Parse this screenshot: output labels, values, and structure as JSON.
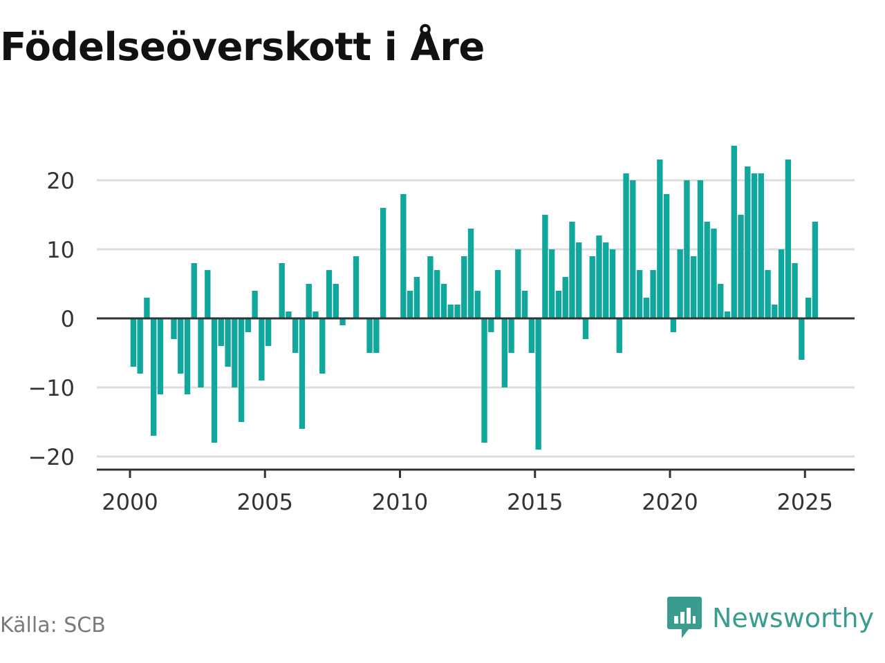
{
  "title": "Födelseöverskott i Åre",
  "source": "Källa: SCB",
  "brand": {
    "name": "Newsworthy",
    "icon": "newsworthy-logo-icon",
    "color": "#3a9c8e"
  },
  "colors": {
    "bar": "#10a89c",
    "zero_line": "#333333",
    "grid": "#dddddd",
    "text": "#333333"
  },
  "chart_data": {
    "type": "bar",
    "title": "Födelseöverskott i Åre",
    "xlabel": "",
    "ylabel": "",
    "x_ticks": [
      2000,
      2005,
      2010,
      2015,
      2020,
      2025
    ],
    "y_ticks": [
      -20,
      -10,
      0,
      10,
      20
    ],
    "y_tick_labels": [
      "−20",
      "−10",
      "0",
      "10",
      "20"
    ],
    "xlim": [
      2000,
      2026
    ],
    "ylim": [
      -22,
      25
    ],
    "grid": "horizontal",
    "x": [
      2000.125,
      2000.375,
      2000.625,
      2000.875,
      2001.125,
      2001.375,
      2001.625,
      2001.875,
      2002.125,
      2002.375,
      2002.625,
      2002.875,
      2003.125,
      2003.375,
      2003.625,
      2003.875,
      2004.125,
      2004.375,
      2004.625,
      2004.875,
      2005.125,
      2005.375,
      2005.625,
      2005.875,
      2006.125,
      2006.375,
      2006.625,
      2006.875,
      2007.125,
      2007.375,
      2007.625,
      2007.875,
      2008.125,
      2008.375,
      2008.625,
      2008.875,
      2009.125,
      2009.375,
      2009.625,
      2009.875,
      2010.125,
      2010.375,
      2010.625,
      2010.875,
      2011.125,
      2011.375,
      2011.625,
      2011.875,
      2012.125,
      2012.375,
      2012.625,
      2012.875,
      2013.125,
      2013.375,
      2013.625,
      2013.875,
      2014.125,
      2014.375,
      2014.625,
      2014.875,
      2015.125,
      2015.375,
      2015.625,
      2015.875,
      2016.125,
      2016.375,
      2016.625,
      2016.875,
      2017.125,
      2017.375,
      2017.625,
      2017.875,
      2018.125,
      2018.375,
      2018.625,
      2018.875,
      2019.125,
      2019.375,
      2019.625,
      2019.875,
      2020.125,
      2020.375,
      2020.625,
      2020.875,
      2021.125,
      2021.375,
      2021.625,
      2021.875,
      2022.125,
      2022.375,
      2022.625,
      2022.875,
      2023.125,
      2023.375,
      2023.625,
      2023.875,
      2024.125,
      2024.375,
      2024.625,
      2024.875,
      2025.125,
      2025.375
    ],
    "values": [
      -7,
      -8,
      3,
      -17,
      -11,
      0,
      -3,
      -8,
      -11,
      8,
      -10,
      7,
      -18,
      -4,
      -7,
      -10,
      -15,
      -2,
      4,
      -9,
      -4,
      0,
      8,
      1,
      -5,
      -16,
      5,
      1,
      -8,
      7,
      5,
      -1,
      0,
      9,
      0,
      -5,
      -5,
      16,
      0,
      0,
      18,
      4,
      6,
      0,
      9,
      7,
      5,
      2,
      2,
      9,
      13,
      4,
      -18,
      -2,
      7,
      -10,
      -5,
      10,
      4,
      -5,
      -19,
      15,
      10,
      4,
      6,
      14,
      11,
      -3,
      9,
      12,
      11,
      10,
      -5,
      21,
      20,
      7,
      3,
      7,
      23,
      18,
      -2,
      10,
      20,
      9,
      20,
      14,
      13,
      5,
      1,
      25,
      15,
      22,
      21,
      21,
      7,
      2,
      10,
      23,
      8,
      -6,
      3,
      14
    ]
  }
}
